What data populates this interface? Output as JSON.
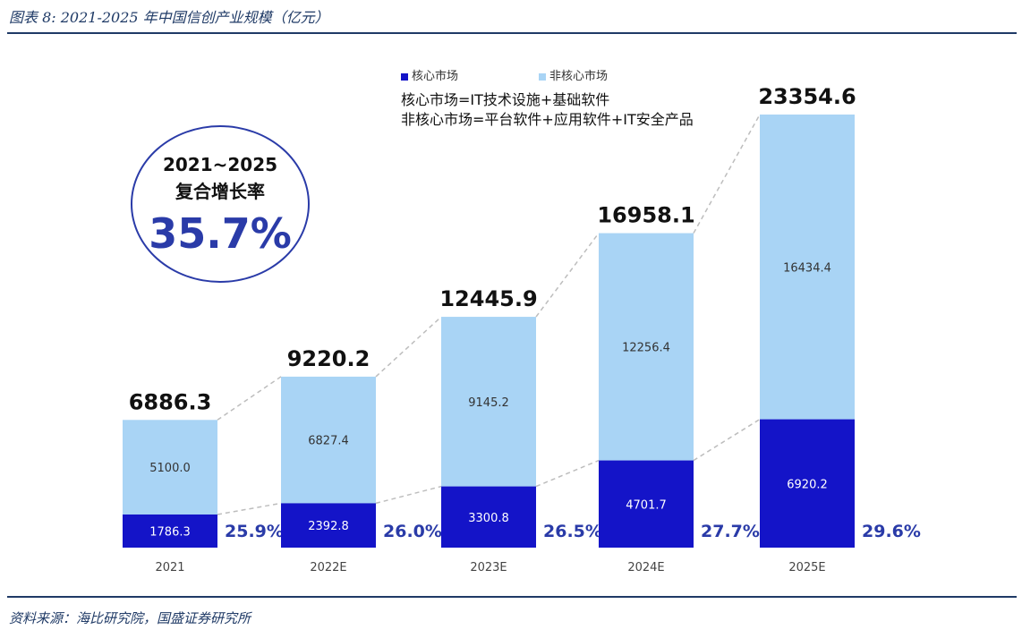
{
  "figure": {
    "title": "图表 8: 2021-2025 年中国信创产业规模（亿元）",
    "source": "资料来源：海比研究院，国盛证券研究所"
  },
  "cagr": {
    "years": "2021~2025",
    "label": "复合增长率",
    "value": "35.7%"
  },
  "legend": {
    "core": "核心市场",
    "noncore": "非核心市场"
  },
  "notes": {
    "line1": "核心市场=IT技术设施+基础软件",
    "line2": "非核心市场=平台软件+应用软件+IT安全产品"
  },
  "colors": {
    "core": "#1414c8",
    "noncore": "#a9d4f5",
    "accent": "#2a3ba8",
    "rule": "#1f3a66"
  },
  "chart_data": {
    "type": "bar",
    "stacked": true,
    "categories": [
      "2021",
      "2022E",
      "2023E",
      "2024E",
      "2025E"
    ],
    "series": [
      {
        "name": "核心市场",
        "values": [
          1786.3,
          2392.8,
          3300.8,
          4701.7,
          6920.2
        ],
        "labels": [
          "1786.3",
          "2392.8",
          "3300.8",
          "4701.7",
          "6920.2"
        ]
      },
      {
        "name": "非核心市场",
        "values": [
          5100.0,
          6827.4,
          9145.2,
          12256.4,
          16434.4
        ],
        "labels": [
          "5100.0",
          "6827.4",
          "9145.2",
          "12256.4",
          "16434.4"
        ]
      }
    ],
    "totals": [
      "6886.3",
      "9220.2",
      "12445.9",
      "16958.1",
      "23354.6"
    ],
    "core_share": [
      "25.9%",
      "26.0%",
      "26.5%",
      "27.7%",
      "29.6%"
    ],
    "ylim": [
      0,
      23354.6
    ],
    "grid": false,
    "legend_position": "top-center"
  }
}
